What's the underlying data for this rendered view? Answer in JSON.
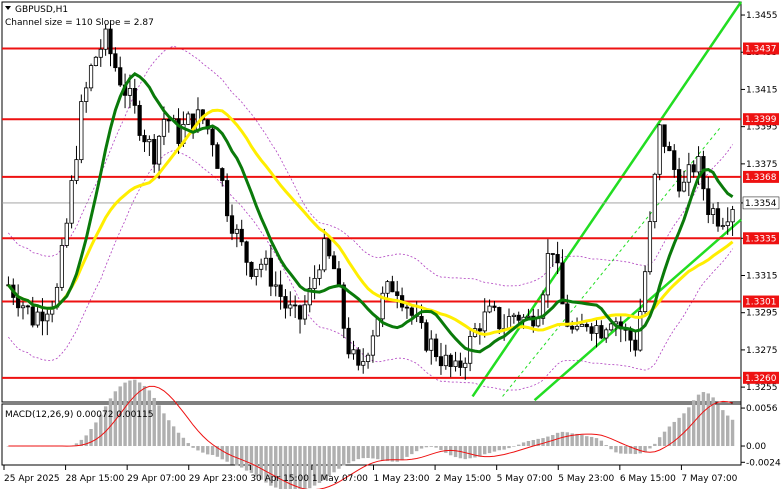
{
  "header": {
    "symbol_label": "GBPUSD,H1",
    "channel_label": "Channel size = 110 Slope = 2.87"
  },
  "macd": {
    "label": "MACD(12,26,9) 0.00072 0.00115",
    "axis_ticks": [
      {
        "value": 0.0056,
        "label": "0.0056"
      },
      {
        "value": 0.0,
        "label": "0.00"
      },
      {
        "value": -0.0024,
        "label": "-0.00243"
      }
    ],
    "ylim": [
      -0.0028,
      0.0062
    ]
  },
  "chart_data": {
    "type": "candlestick",
    "ylim": [
      1.3247,
      1.3462
    ],
    "y_ticks": [
      1.3455,
      1.3435,
      1.3415,
      1.3395,
      1.3375,
      1.3354,
      1.3335,
      1.3315,
      1.3295,
      1.3275,
      1.3255
    ],
    "current_price": 1.3354,
    "x_ticks": [
      "25 Apr 2025",
      "28 Apr 15:00",
      "29 Apr 07:00",
      "29 Apr 23:00",
      "30 Apr 15:00",
      "1 May 07:00",
      "1 May 23:00",
      "2 May 15:00",
      "5 May 07:00",
      "5 May 23:00",
      "6 May 15:00",
      "7 May 07:00"
    ],
    "levels": [
      {
        "value": 1.3437,
        "label": "1.3437"
      },
      {
        "value": 1.3399,
        "label": "1.3399"
      },
      {
        "value": 1.3368,
        "label": "1.3368"
      },
      {
        "value": 1.3335,
        "label": "1.3335"
      },
      {
        "value": 1.3301,
        "label": "1.3301"
      },
      {
        "value": 1.326,
        "label": "1.3260"
      }
    ],
    "closes": [
      1.331,
      1.3302,
      1.3292,
      1.3298,
      1.3305,
      1.335,
      1.3402,
      1.343,
      1.3442,
      1.3425,
      1.341,
      1.3395,
      1.338,
      1.3402,
      1.339,
      1.3398,
      1.34,
      1.3388,
      1.3355,
      1.3335,
      1.332,
      1.3322,
      1.3312,
      1.3298,
      1.329,
      1.3305,
      1.333,
      1.3318,
      1.328,
      1.3262,
      1.3282,
      1.3302,
      1.3312,
      1.33,
      1.3285,
      1.3278,
      1.327,
      1.3262,
      1.3275,
      1.329,
      1.3294,
      1.3288,
      1.3295,
      1.329,
      1.33,
      1.3335,
      1.3295,
      1.328,
      1.3292,
      1.3286,
      1.3295,
      1.3284,
      1.3278,
      1.333,
      1.3395,
      1.3374,
      1.3362,
      1.3378,
      1.3352,
      1.3346,
      1.3354
    ]
  }
}
